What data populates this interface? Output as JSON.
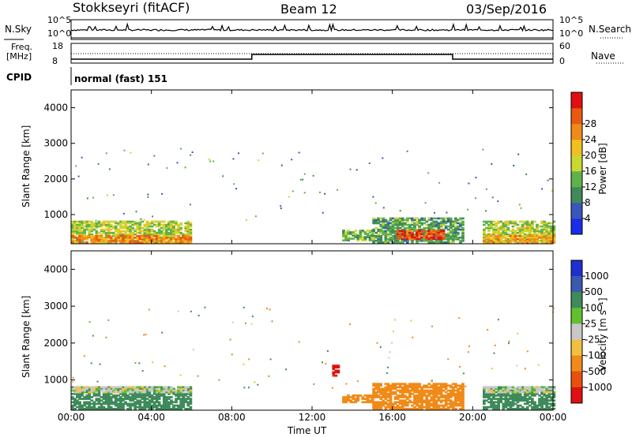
{
  "header": {
    "station": "Stokkseyri (fitACF)",
    "beam": "Beam 12",
    "date": "03/Sep/2016"
  },
  "panels": {
    "nsky_label": "N.Sky",
    "nsearch_label": "N.Search",
    "freq_label": "Freq.",
    "freq_unit": "[MHz]",
    "nave_label": "Nave",
    "cpid_label": "CPID",
    "cpid_text": "normal (fast) 151",
    "nsky_ticks_left": [
      "10^5",
      "10^0"
    ],
    "nsky_ticks_right": [
      "10^5",
      "10^0"
    ],
    "freq_ticks_left": [
      "18",
      "8"
    ],
    "freq_ticks_right": [
      "60",
      "0"
    ]
  },
  "chart_data": [
    {
      "type": "heatmap",
      "title": "",
      "xlabel": "Time UT",
      "ylabel": "Slant Range [km]",
      "xlim": [
        0,
        24
      ],
      "ylim": [
        180,
        4500
      ],
      "x_ticks": [
        "00:00",
        "04:00",
        "08:00",
        "12:00",
        "16:00",
        "20:00",
        "00:00"
      ],
      "y_ticks": [
        "1000",
        "2000",
        "3000",
        "4000"
      ],
      "colorbar_label": "Power [dB]",
      "colorbar_ticks": [
        "4",
        "8",
        "12",
        "16",
        "20",
        "24",
        "28"
      ],
      "colorbar_range": [
        0,
        30
      ],
      "colorbar_colors": [
        "#1a2ee8",
        "#3a56b8",
        "#3f8a5a",
        "#62b04a",
        "#c9d832",
        "#f0c020",
        "#f08a18",
        "#e85a10",
        "#e01010"
      ],
      "regions": [
        {
          "t0": 0.0,
          "t1": 6.0,
          "r0": 200,
          "r1": 820,
          "value": 14
        },
        {
          "t0": 0.0,
          "t1": 6.0,
          "r0": 200,
          "r1": 420,
          "value": 22
        },
        {
          "t0": 13.5,
          "t1": 15.0,
          "r0": 260,
          "r1": 560,
          "value": 12
        },
        {
          "t0": 15.0,
          "t1": 19.5,
          "r0": 200,
          "r1": 900,
          "value": 10
        },
        {
          "t0": 16.2,
          "t1": 18.5,
          "r0": 300,
          "r1": 560,
          "value": 26
        },
        {
          "t0": 20.5,
          "t1": 24.0,
          "r0": 200,
          "r1": 820,
          "value": 14
        },
        {
          "t0": 20.5,
          "t1": 24.0,
          "r0": 200,
          "r1": 400,
          "value": 20
        }
      ]
    },
    {
      "type": "heatmap",
      "title": "",
      "xlabel": "Time UT",
      "ylabel": "Slant Range [km]",
      "xlim": [
        0,
        24
      ],
      "ylim": [
        180,
        4500
      ],
      "x_ticks": [
        "00:00",
        "04:00",
        "08:00",
        "12:00",
        "16:00",
        "20:00",
        "00:00"
      ],
      "y_ticks": [
        "1000",
        "2000",
        "3000",
        "4000"
      ],
      "colorbar_label": "Velocity [m s⁻¹]",
      "colorbar_ticks": [
        "1000",
        "500",
        "100",
        "25",
        "-25",
        "-100",
        "-500",
        "-1000"
      ],
      "colorbar_range": [
        -1000,
        1000
      ],
      "colorbar_colors": [
        "#2030d0",
        "#3a5ab0",
        "#3f8a5a",
        "#62c030",
        "#c8c8c8",
        "#f0c040",
        "#f08a18",
        "#e85010",
        "#e01010"
      ],
      "regions": [
        {
          "t0": 0.0,
          "t1": 6.0,
          "r0": 200,
          "r1": 820,
          "value": 100
        },
        {
          "t0": 0.0,
          "t1": 6.0,
          "r0": 650,
          "r1": 820,
          "value": 0
        },
        {
          "t0": 13.0,
          "t1": 13.3,
          "r0": 1100,
          "r1": 1400,
          "value": -900
        },
        {
          "t0": 13.5,
          "t1": 15.0,
          "r0": 380,
          "r1": 600,
          "value": -150
        },
        {
          "t0": 15.0,
          "t1": 19.5,
          "r0": 200,
          "r1": 900,
          "value": -150
        },
        {
          "t0": 20.5,
          "t1": 24.0,
          "r0": 200,
          "r1": 820,
          "value": 100
        },
        {
          "t0": 20.5,
          "t1": 24.0,
          "r0": 650,
          "r1": 820,
          "value": 0
        }
      ]
    }
  ]
}
